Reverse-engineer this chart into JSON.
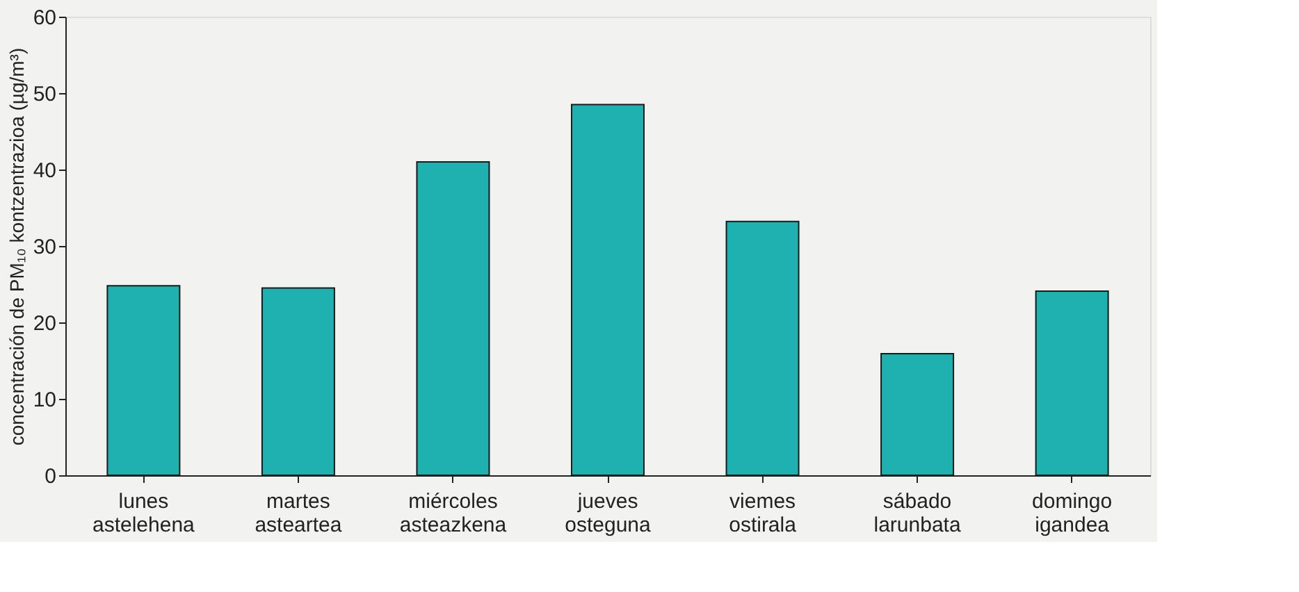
{
  "chart_data": {
    "type": "bar",
    "ylabel": "concentración de PM₁₀ kontzentrazioa (µg/m³)",
    "categories": [
      "lunes\nastelehena",
      "martes\nasteartea",
      "miércoles\nasteazkena",
      "jueves\nosteguna",
      "viemes\nostirala",
      "sábado\nlarunbata",
      "domingo\nigandea"
    ],
    "values": [
      24.8,
      24.5,
      41,
      48.5,
      33.2,
      15.9,
      24.1
    ],
    "color": "#1fb0b0",
    "ylim": [
      0,
      60
    ],
    "yticks": [
      0,
      10,
      20,
      30,
      40,
      50,
      60
    ],
    "grid": false
  }
}
